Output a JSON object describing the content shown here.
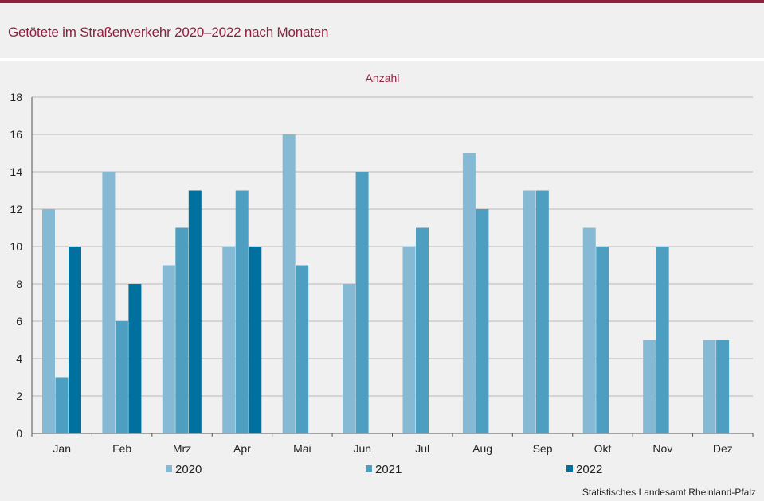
{
  "title": "Getötete im Straßenverkehr 2020–2022 nach Monaten",
  "source": "Statistisches Landesamt Rheinland-Pfalz",
  "chart_data": {
    "type": "bar",
    "ylabel": "Anzahl",
    "ylim": [
      0,
      18
    ],
    "ytick_step": 2,
    "grid": true,
    "legend_position": "bottom",
    "categories": [
      "Jan",
      "Feb",
      "Mrz",
      "Apr",
      "Mai",
      "Jun",
      "Jul",
      "Aug",
      "Sep",
      "Okt",
      "Nov",
      "Dez"
    ],
    "series": [
      {
        "name": "2020",
        "color": "#85b9d4",
        "values": [
          12,
          14,
          9,
          10,
          16,
          8,
          10,
          15,
          13,
          11,
          5,
          5
        ]
      },
      {
        "name": "2021",
        "color": "#4c9fc1",
        "values": [
          3,
          6,
          11,
          13,
          9,
          14,
          11,
          12,
          13,
          10,
          10,
          5
        ]
      },
      {
        "name": "2022",
        "color": "#00709e",
        "values": [
          10,
          8,
          13,
          10,
          null,
          null,
          null,
          null,
          null,
          null,
          null,
          null
        ]
      }
    ]
  }
}
